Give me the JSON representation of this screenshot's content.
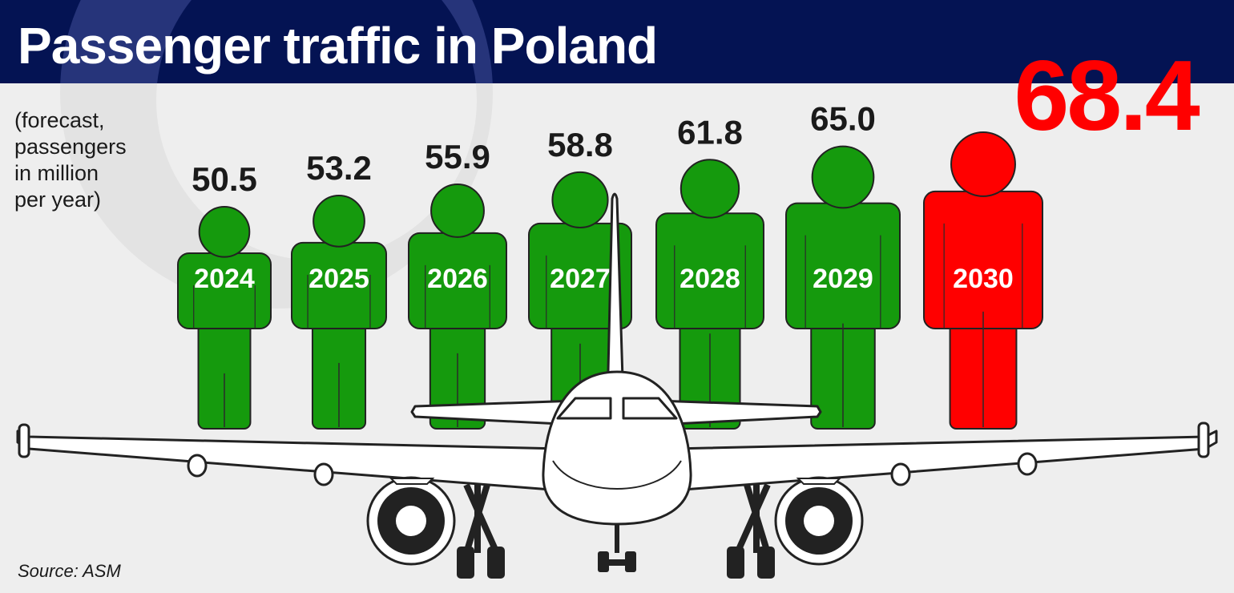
{
  "title": "Passenger traffic in Poland",
  "subtitle_lines": [
    "(forecast,",
    "passengers",
    "in million",
    "per year)"
  ],
  "source": "Source: ASM",
  "colors": {
    "header": "#041353",
    "forecast_figure": "#159a0d",
    "highlight_figure": "#ff0000",
    "value_text": "#1a1a1a",
    "highlight_value_text": "#ff0000"
  },
  "chart_data": {
    "type": "bar",
    "title": "Passenger traffic in Poland",
    "subtitle": "(forecast, passengers in million per year)",
    "categories": [
      "2024",
      "2025",
      "2026",
      "2027",
      "2028",
      "2029",
      "2030"
    ],
    "values": [
      50.5,
      53.2,
      55.9,
      58.8,
      61.8,
      65.0,
      68.4
    ],
    "value_labels": [
      "50.5",
      "53.2",
      "55.9",
      "58.8",
      "61.8",
      "65.0",
      "68.4"
    ],
    "highlight_category": "2030",
    "mark_shape": "person-icon",
    "xlabel": "",
    "ylabel": "",
    "grid": false,
    "legend": "none",
    "source": "Source: ASM"
  }
}
